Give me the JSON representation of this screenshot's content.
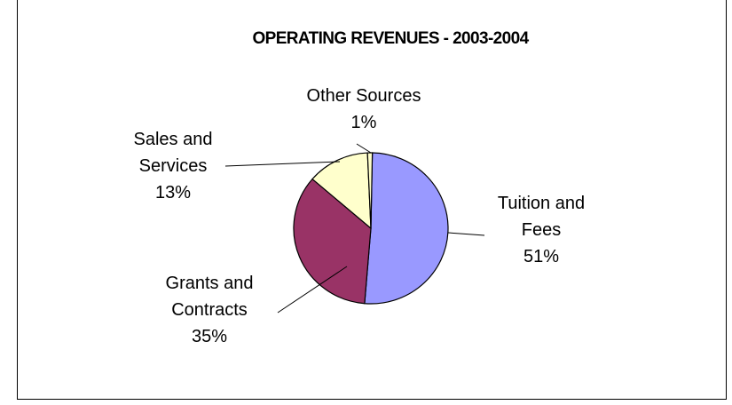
{
  "chart_data": {
    "type": "pie",
    "title": "OPERATING REVENUES - 2003-2004",
    "slices": [
      {
        "label_lines": [
          "Tuition and",
          "Fees"
        ],
        "percent_label": "51%",
        "value": 51,
        "color": "#9999ff"
      },
      {
        "label_lines": [
          "Grants and",
          "Contracts"
        ],
        "percent_label": "35%",
        "value": 35,
        "color": "#993366"
      },
      {
        "label_lines": [
          "Sales and",
          "Services"
        ],
        "percent_label": "13%",
        "value": 13,
        "color": "#ffffcc"
      },
      {
        "label_lines": [
          "Other Sources"
        ],
        "percent_label": "1%",
        "value": 1,
        "color": "#ffffcc"
      }
    ],
    "legend": "none"
  }
}
